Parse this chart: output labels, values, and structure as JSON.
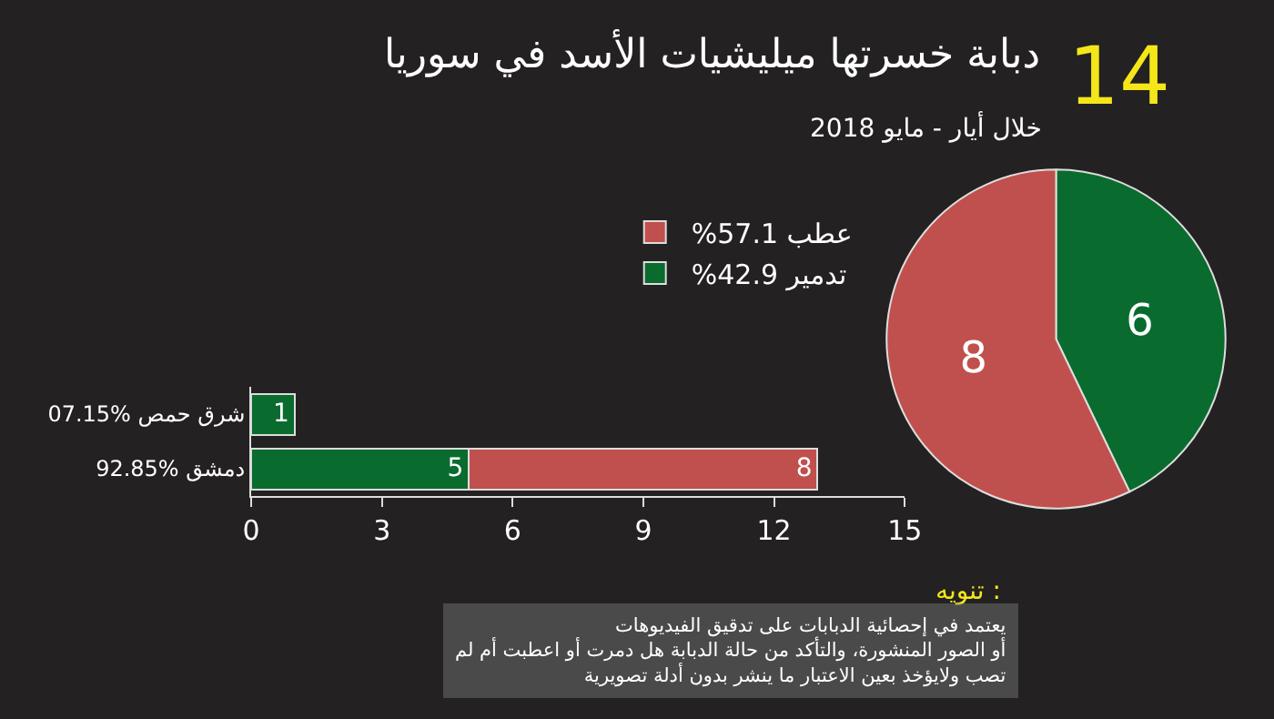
{
  "chart_data": [
    {
      "type": "bar",
      "orientation": "horizontal",
      "stacked": true,
      "categories": [
        "07.15% شرق حمص",
        "92.85% دمشق"
      ],
      "series": [
        {
          "color": "#0a6b2f",
          "values": [
            1,
            5
          ]
        },
        {
          "color": "#c0504d",
          "values": [
            null,
            8
          ]
        }
      ],
      "xlim": [
        0,
        15
      ],
      "xticks": [
        0,
        3,
        6,
        9,
        12,
        15
      ],
      "data_labels": true,
      "grid": false
    },
    {
      "type": "pie",
      "title": "دبابة خسرتها ميليشيات الأسد في سوريا",
      "subtitle": "خلال أيار - مايو 2018",
      "categories": [
        "تدمير 42.9%",
        "عطب 57.1%"
      ],
      "values": [
        6,
        8
      ],
      "colors": [
        "#0a6b2f",
        "#c0504d"
      ],
      "data_labels": true,
      "legend": "left",
      "annotations": [
        "14",
        "تنويه :",
        "يعتمد في إحصائية الدبابات على تدقيق الفيديوهات\nأو الصور المنشورة، والتأكد من حالة الدبابة هل دمرت أو اعطبت أم لم\nتصب ولايؤخذ بعين الاعتبار ما ينشر بدون أدلة تصويرية"
      ]
    }
  ]
}
